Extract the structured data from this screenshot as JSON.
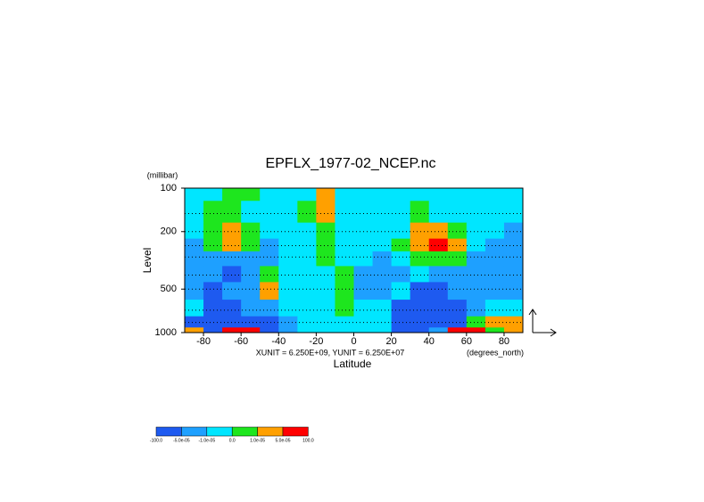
{
  "chart_data": {
    "type": "contour",
    "title": "EPFLX_1977-02_NCEP.nc",
    "y_units": "(millibar)",
    "y_label": "Level",
    "x_label": "Latitude",
    "x_units": "(degrees_north)",
    "annotation": "XUNIT = 6.250E+09, YUNIT = 6.250E+07",
    "xlim": [
      -90,
      90
    ],
    "xticks": [
      -80,
      -60,
      -40,
      -20,
      0,
      20,
      40,
      60,
      80
    ],
    "ylim": [
      1000,
      100
    ],
    "yticks": [
      100,
      200,
      500,
      1000
    ],
    "log_y": true,
    "x": [
      -85,
      -75,
      -65,
      -55,
      -45,
      -35,
      -25,
      -15,
      -5,
      5,
      15,
      25,
      35,
      45,
      55,
      65,
      75,
      85
    ],
    "levels": [
      100,
      150,
      200,
      250,
      300,
      400,
      500,
      700,
      850,
      1000
    ],
    "values": [
      [
        -5e-06,
        -5e-06,
        5e-06,
        5e-06,
        -5e-06,
        -5e-06,
        -5e-06,
        3e-05,
        -5e-06,
        -5e-06,
        -5e-06,
        -5e-06,
        -5e-06,
        -5e-06,
        -5e-06,
        -5e-06,
        -5e-06,
        -5e-06
      ],
      [
        -5e-06,
        5e-06,
        5e-06,
        -5e-06,
        -5e-06,
        -5e-06,
        5e-06,
        3e-05,
        -5e-06,
        -5e-06,
        -5e-06,
        -5e-06,
        5e-06,
        -5e-06,
        -5e-06,
        -5e-06,
        -5e-06,
        -5e-06
      ],
      [
        -5e-06,
        5e-06,
        3e-05,
        5e-06,
        -5e-06,
        -5e-06,
        -5e-06,
        5e-06,
        -5e-06,
        -5e-06,
        -5e-06,
        -5e-06,
        3e-05,
        3e-05,
        5e-06,
        -5e-06,
        -5e-06,
        -3e-05
      ],
      [
        -3e-05,
        5e-06,
        3e-05,
        5e-06,
        -3e-05,
        -5e-06,
        -5e-06,
        5e-06,
        -5e-06,
        -5e-06,
        -5e-06,
        5e-06,
        3e-05,
        0.0001,
        3e-05,
        -5e-06,
        -3e-05,
        -3e-05
      ],
      [
        -3e-05,
        -3e-05,
        -3e-05,
        -3e-05,
        -3e-05,
        -5e-06,
        -5e-06,
        5e-06,
        -5e-06,
        -5e-06,
        -3e-05,
        -5e-06,
        5e-06,
        5e-06,
        5e-06,
        -3e-05,
        -3e-05,
        -3e-05
      ],
      [
        -3e-05,
        -3e-05,
        -0.0001,
        -3e-05,
        5e-06,
        -5e-06,
        -5e-06,
        -5e-06,
        5e-06,
        -3e-05,
        -3e-05,
        -3e-05,
        -5e-06,
        -3e-05,
        -3e-05,
        -3e-05,
        -3e-05,
        -3e-05
      ],
      [
        -3e-05,
        -0.0001,
        -3e-05,
        -3e-05,
        3e-05,
        -5e-06,
        -5e-06,
        -5e-06,
        5e-06,
        -3e-05,
        -3e-05,
        -5e-06,
        -0.0001,
        -0.0001,
        -3e-05,
        -3e-05,
        -3e-05,
        -3e-05
      ],
      [
        -5e-06,
        -0.0001,
        -0.0001,
        -3e-05,
        -3e-05,
        -5e-06,
        -5e-06,
        -5e-06,
        5e-06,
        -5e-06,
        -5e-06,
        -0.0001,
        -0.0001,
        -0.0001,
        -0.0001,
        -3e-05,
        -5e-06,
        -5e-06
      ],
      [
        -0.0001,
        -0.0001,
        -0.0001,
        -0.0001,
        -0.0001,
        -3e-05,
        -5e-06,
        -5e-06,
        -5e-06,
        -5e-06,
        -5e-06,
        -0.0001,
        -0.0001,
        -0.0001,
        -0.0001,
        5e-06,
        3e-05,
        3e-05
      ],
      [
        3e-05,
        -0.0001,
        0.0001,
        0.0001,
        -0.0001,
        -3e-05,
        -5e-06,
        -5e-06,
        -5e-06,
        -5e-06,
        -5e-06,
        -0.0001,
        -0.0001,
        -3e-05,
        0.0001,
        0.0001,
        5e-06,
        3e-05
      ]
    ],
    "colorbar": {
      "levels": [
        {
          "value": -100,
          "label": "-100.0"
        },
        {
          "value": -5e-05,
          "label": "-5.0e-05"
        },
        {
          "value": -1e-05,
          "label": "-1.0e-05"
        },
        {
          "value": 0,
          "label": "0.0"
        },
        {
          "value": 1e-05,
          "label": "1.0e-05"
        },
        {
          "value": 5e-05,
          "label": "5.0e-05"
        },
        {
          "value": 100,
          "label": "100.0"
        }
      ],
      "colors": [
        "#1e5af0",
        "#1ea0ff",
        "#00e6ff",
        "#1ee61e",
        "#ffa000",
        "#ff0000"
      ]
    }
  }
}
